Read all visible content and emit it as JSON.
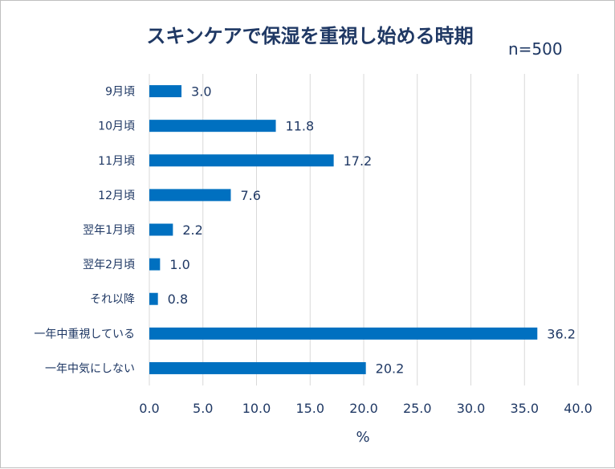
{
  "chart_data": {
    "type": "bar",
    "orientation": "horizontal",
    "title": "スキンケアで保湿を重視し始める時期",
    "note": "n=500",
    "categories": [
      "9月頃",
      "10月頃",
      "11月頃",
      "12月頃",
      "翌年1月頃",
      "翌年2月頃",
      "それ以降",
      "一年中重視している",
      "一年中気にしない"
    ],
    "values": [
      3.0,
      11.8,
      17.2,
      7.6,
      2.2,
      1.0,
      0.8,
      36.2,
      20.2
    ],
    "value_labels": [
      "3.0",
      "11.8",
      "17.2",
      "7.6",
      "2.2",
      "1.0",
      "0.8",
      "36.2",
      "20.2"
    ],
    "xlim": [
      0,
      40
    ],
    "xticks": [
      "0.0",
      "5.0",
      "10.0",
      "15.0",
      "20.0",
      "25.0",
      "30.0",
      "35.0",
      "40.0"
    ],
    "xlabel": "%",
    "ylabel": "",
    "grid": true,
    "legend": "none",
    "bar_color": "#0070c0",
    "text_color": "#1f3864"
  }
}
